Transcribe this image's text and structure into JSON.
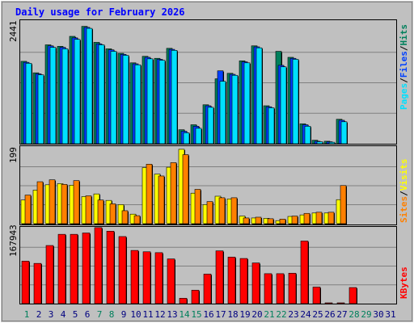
{
  "title": "Daily usage for February 2026",
  "colors": {
    "bg": "#c0c0c0",
    "hits": "#00805c",
    "files": "#0040ff",
    "pages": "#00e0ff",
    "visits": "#ffff00",
    "sites": "#ff8000",
    "kbytes": "#ff0000",
    "title": "#0000ff",
    "weekend": "#00805c",
    "weekday": "#000080"
  },
  "legend": {
    "hits": "Hits",
    "files": "Files",
    "pages": "Pages",
    "visits": "Visits",
    "sites": "Sites",
    "kbytes": "KBytes",
    "slash": "/"
  },
  "chart_data": [
    {
      "type": "bar",
      "panel": "hits-files-pages",
      "ymax_label": "2441",
      "ymax": 2441,
      "categories": [
        "1",
        "2",
        "3",
        "4",
        "5",
        "6",
        "7",
        "8",
        "9",
        "10",
        "11",
        "12",
        "13",
        "14",
        "15",
        "16",
        "17",
        "18",
        "19",
        "20",
        "21",
        "22",
        "23",
        "24",
        "25",
        "26",
        "27",
        "28",
        "29",
        "30",
        "31"
      ],
      "series": [
        {
          "name": "Hits",
          "values": [
            1650,
            1420,
            1980,
            1950,
            2150,
            2350,
            2030,
            1900,
            1810,
            1620,
            1750,
            1710,
            1910,
            280,
            380,
            780,
            1300,
            1410,
            1660,
            1960,
            760,
            1850,
            1730,
            400,
            70,
            50,
            490,
            0,
            0,
            0,
            0
          ]
        },
        {
          "name": "Files",
          "values": [
            1630,
            1400,
            1960,
            1930,
            2120,
            2330,
            2000,
            1880,
            1790,
            1600,
            1730,
            1690,
            1890,
            250,
            350,
            760,
            1460,
            1390,
            1640,
            1940,
            740,
            1570,
            1710,
            380,
            50,
            40,
            470,
            0,
            0,
            0,
            0
          ]
        },
        {
          "name": "Pages",
          "values": [
            1610,
            1380,
            1930,
            1900,
            2090,
            2310,
            1980,
            1850,
            1770,
            1580,
            1700,
            1670,
            1870,
            220,
            310,
            730,
            1250,
            1370,
            1620,
            1920,
            720,
            1540,
            1690,
            350,
            40,
            30,
            440,
            0,
            0,
            0,
            0
          ]
        }
      ]
    },
    {
      "type": "bar",
      "panel": "visits-sites",
      "ymax_label": "199",
      "ymax": 199,
      "categories": [
        "1",
        "2",
        "3",
        "4",
        "5",
        "6",
        "7",
        "8",
        "9",
        "10",
        "11",
        "12",
        "13",
        "14",
        "15",
        "16",
        "17",
        "18",
        "19",
        "20",
        "21",
        "22",
        "23",
        "24",
        "25",
        "26",
        "27",
        "28",
        "29",
        "30",
        "31"
      ],
      "series": [
        {
          "name": "Visits",
          "values": [
            62,
            88,
            102,
            105,
            101,
            71,
            78,
            61,
            50,
            25,
            147,
            130,
            148,
            195,
            80,
            50,
            72,
            65,
            20,
            15,
            14,
            8,
            19,
            23,
            28,
            28,
            63,
            0,
            0,
            0,
            0
          ]
        },
        {
          "name": "Sites",
          "values": [
            75,
            110,
            115,
            103,
            113,
            73,
            62,
            52,
            34,
            21,
            156,
            125,
            160,
            181,
            90,
            58,
            68,
            68,
            15,
            17,
            13,
            12,
            20,
            27,
            30,
            30,
            100,
            0,
            0,
            0,
            0
          ]
        }
      ]
    },
    {
      "type": "bar",
      "panel": "kbytes",
      "ymax_label": "167943",
      "ymax": 167943,
      "categories": [
        "1",
        "2",
        "3",
        "4",
        "5",
        "6",
        "7",
        "8",
        "9",
        "10",
        "11",
        "12",
        "13",
        "14",
        "15",
        "16",
        "17",
        "18",
        "19",
        "20",
        "21",
        "22",
        "23",
        "24",
        "25",
        "26",
        "27",
        "28",
        "29",
        "30",
        "31"
      ],
      "series": [
        {
          "name": "KBytes",
          "values": [
            95000,
            90000,
            130000,
            155000,
            155000,
            158000,
            170000,
            162000,
            150000,
            119000,
            116000,
            114000,
            100000,
            12000,
            30000,
            66000,
            118000,
            104000,
            101000,
            91000,
            67000,
            67000,
            68000,
            140000,
            37000,
            1800,
            1800,
            36000,
            0,
            0,
            0
          ]
        }
      ]
    }
  ],
  "weekend_days": [
    1,
    7,
    8,
    14,
    15,
    21,
    22,
    28,
    29
  ]
}
